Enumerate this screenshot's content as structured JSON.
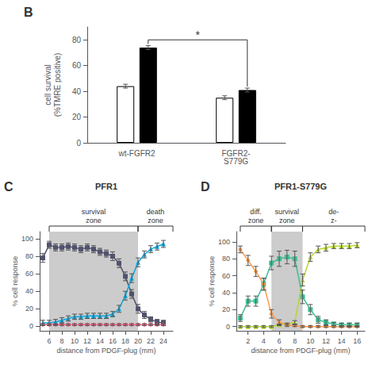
{
  "chart_data": [
    {
      "type": "bar",
      "panel_label": "B",
      "ylabel": "cell survival\n(%TMRE positive)",
      "categories": [
        "wt-FGFR2",
        "FGFR2-\nS779G"
      ],
      "series": [
        {
          "color": "white",
          "values": [
            44,
            35
          ],
          "errors": [
            1.5,
            1.5
          ]
        },
        {
          "color": "black",
          "values": [
            74,
            41
          ],
          "errors": [
            1.5,
            1.5
          ]
        }
      ],
      "ylim": [
        0,
        90
      ],
      "yticks": [
        0,
        20,
        40,
        60,
        80
      ],
      "grid": false,
      "annotations": [
        {
          "text": "*",
          "y": 80,
          "series": 1,
          "between": [
            0,
            1
          ]
        }
      ]
    },
    {
      "type": "line",
      "panel_label": "C",
      "title": "PFR1",
      "xlabel": "distance from PDGF-plug (mm)",
      "ylabel": "% cell response",
      "xlim": [
        4.5,
        25.5
      ],
      "xticks": [
        6,
        8,
        10,
        12,
        14,
        16,
        18,
        20,
        22,
        24
      ],
      "ylim": [
        -5,
        108
      ],
      "yticks": [
        0,
        20,
        40,
        60,
        80,
        100
      ],
      "grid": false,
      "zones": [
        {
          "label": "survival\nzone",
          "from": 6,
          "to": 20,
          "shaded": true
        },
        {
          "label": "death\nzone",
          "from": 20,
          "to": 25.5,
          "shaded": false
        }
      ],
      "series": [
        {
          "marker": "square",
          "x": [
            5,
            6,
            7,
            8,
            9,
            10,
            11,
            12,
            13,
            14,
            15,
            16,
            17,
            18,
            19,
            20,
            21,
            22,
            23,
            24
          ],
          "values": [
            78,
            93,
            90,
            90,
            91,
            90,
            88,
            90,
            88,
            85,
            83,
            80,
            72,
            57,
            37,
            20,
            13,
            8,
            5,
            4
          ],
          "errors": [
            5,
            4,
            4,
            4,
            4,
            4,
            4,
            4,
            4,
            4,
            4,
            5,
            5,
            5,
            5,
            5,
            4,
            3,
            3,
            3
          ]
        },
        {
          "marker": "triangle",
          "x": [
            5,
            6,
            7,
            8,
            9,
            10,
            11,
            12,
            13,
            14,
            15,
            16,
            17,
            18,
            19,
            20,
            21,
            22,
            23,
            24
          ],
          "values": [
            4,
            4,
            5,
            7,
            9,
            11,
            11,
            12,
            12,
            12,
            12,
            14,
            20,
            35,
            55,
            73,
            82,
            88,
            91,
            94
          ],
          "errors": [
            3,
            3,
            3,
            3,
            3,
            3,
            3,
            3,
            3,
            3,
            3,
            3,
            4,
            5,
            5,
            5,
            4,
            4,
            4,
            4
          ]
        },
        {
          "marker": "diamond",
          "x": [
            5,
            6,
            7,
            8,
            9,
            10,
            11,
            12,
            13,
            14,
            15,
            16,
            17,
            18,
            19,
            20,
            21,
            22,
            23,
            24
          ],
          "values": [
            2,
            2,
            2,
            2,
            2,
            2,
            2,
            2,
            2,
            2,
            2,
            2,
            2,
            2,
            2,
            2,
            2,
            2,
            2,
            2
          ],
          "errors": [
            1,
            1,
            1,
            1,
            1,
            1,
            1,
            1,
            1,
            1,
            1,
            1,
            1,
            1,
            1,
            1,
            1,
            1,
            1,
            1
          ]
        }
      ]
    },
    {
      "type": "line",
      "panel_label": "D",
      "title": "PFR1-S779G",
      "xlabel": "distance from PDGF-plug (mm)",
      "ylabel": "% cell response",
      "xlim": [
        0.5,
        17
      ],
      "xticks": [
        2,
        4,
        6,
        8,
        10,
        12,
        14,
        16
      ],
      "ylim": [
        -5,
        112
      ],
      "yticks": [
        0,
        20,
        40,
        60,
        80,
        100
      ],
      "grid": false,
      "zones": [
        {
          "label": "diff.\nzone",
          "from": 1,
          "to": 5,
          "shaded": false
        },
        {
          "label": "survival\nzone",
          "from": 5,
          "to": 9,
          "shaded": true
        },
        {
          "label": "de-\nz-",
          "from": 9,
          "to": 17,
          "shaded": false
        }
      ],
      "series": [
        {
          "marker": "square",
          "x": [
            1,
            2,
            3,
            4,
            5,
            6,
            7,
            8,
            9,
            10,
            11,
            12,
            13,
            14,
            15,
            16
          ],
          "values": [
            10,
            30,
            30,
            50,
            75,
            80,
            82,
            80,
            35,
            20,
            8,
            5,
            3,
            2,
            2,
            2
          ],
          "errors": [
            4,
            6,
            6,
            7,
            8,
            9,
            8,
            9,
            8,
            6,
            4,
            3,
            2,
            2,
            2,
            2
          ]
        },
        {
          "marker": "triangle",
          "x": [
            1,
            2,
            3,
            4,
            5,
            6,
            7,
            8,
            9,
            10,
            11,
            12,
            13,
            14,
            15,
            16
          ],
          "values": [
            0,
            0,
            0,
            0,
            0,
            2,
            3,
            5,
            55,
            82,
            91,
            93,
            95,
            95,
            95,
            96
          ],
          "errors": [
            1,
            1,
            1,
            1,
            1,
            1,
            1,
            2,
            7,
            5,
            4,
            4,
            3,
            3,
            3,
            3
          ]
        },
        {
          "marker": "diamond",
          "x": [
            1,
            2,
            3,
            4,
            5,
            6,
            7,
            8,
            9,
            10,
            11,
            12,
            13,
            14,
            15,
            16
          ],
          "values": [
            91,
            78,
            65,
            50,
            15,
            5,
            2,
            1,
            0,
            0,
            0,
            0,
            0,
            0,
            0,
            0
          ],
          "errors": [
            4,
            6,
            6,
            7,
            5,
            3,
            2,
            1,
            1,
            1,
            1,
            1,
            1,
            1,
            1,
            1
          ]
        }
      ]
    }
  ]
}
